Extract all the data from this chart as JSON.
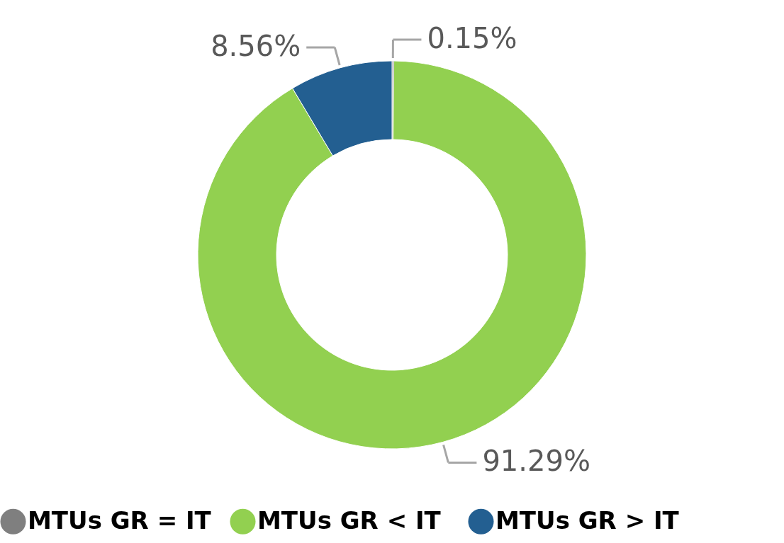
{
  "chart_data": {
    "type": "donut",
    "categories": [
      "MTUs GR =  IT",
      "MTUs  GR <  IT",
      "MTUs GR > IT"
    ],
    "values": [
      0.15,
      91.29,
      8.56
    ],
    "colors": [
      "#7f7f7f",
      "#92d050",
      "#235f91"
    ],
    "value_labels": [
      "0.15%",
      "91.29%",
      "8.56%"
    ],
    "legend": "bottom"
  }
}
